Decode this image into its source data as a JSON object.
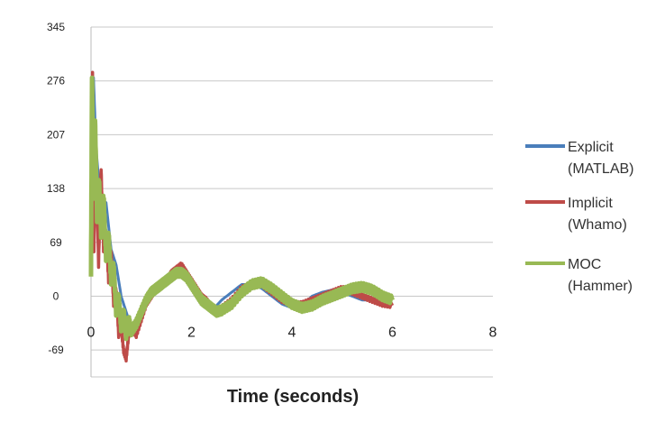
{
  "chart_data": {
    "type": "line",
    "title": "",
    "xlabel": "Time (seconds)",
    "ylabel": "",
    "xlim": [
      0,
      8
    ],
    "ylim": [
      -103.5,
      345
    ],
    "x_ticks": [
      "0",
      "2",
      "4",
      "6",
      "8"
    ],
    "y_ticks": [
      "345",
      "276",
      "207",
      "138",
      "69",
      "0",
      "-69"
    ],
    "grid": "horizontal",
    "legend_position": "right",
    "series": [
      {
        "name": "Explicit (MATLAB)",
        "name_lines": [
          "Explicit",
          "(MATLAB)"
        ],
        "color": "#4a7ebb",
        "x": [
          0,
          0.05,
          0.1,
          0.2,
          0.3,
          0.4,
          0.5,
          0.6,
          0.7,
          0.8,
          0.9,
          1.0,
          1.1,
          1.2,
          1.3,
          1.4,
          1.5,
          1.6,
          1.7,
          1.8,
          1.9,
          2.0,
          2.1,
          2.2,
          2.3,
          2.4,
          2.5,
          2.6,
          2.8,
          3.0,
          3.2,
          3.4,
          3.6,
          3.8,
          4.0,
          4.2,
          4.4,
          4.6,
          4.8,
          5.0,
          5.2,
          5.4,
          5.6,
          5.8,
          6.0
        ],
        "y": [
          60,
          280,
          190,
          110,
          120,
          60,
          40,
          0,
          -20,
          -40,
          -35,
          -20,
          -5,
          5,
          10,
          15,
          20,
          20,
          25,
          30,
          25,
          15,
          5,
          -5,
          -10,
          -15,
          -12,
          -5,
          5,
          15,
          15,
          10,
          0,
          -10,
          -15,
          -12,
          0,
          5,
          8,
          5,
          0,
          -5,
          -5,
          0,
          0
        ]
      },
      {
        "name": "Implicit (Whamo)",
        "name_lines": [
          "Implicit",
          "(Whamo)"
        ],
        "color": "#be4b48",
        "x": [
          0,
          0.03,
          0.06,
          0.1,
          0.15,
          0.2,
          0.25,
          0.3,
          0.35,
          0.4,
          0.45,
          0.5,
          0.55,
          0.6,
          0.65,
          0.7,
          0.75,
          0.8,
          0.9,
          1.0,
          1.1,
          1.2,
          1.3,
          1.4,
          1.5,
          1.6,
          1.7,
          1.8,
          1.9,
          2.0,
          2.1,
          2.2,
          2.3,
          2.4,
          2.5,
          2.6,
          2.8,
          3.0,
          3.2,
          3.4,
          3.6,
          3.8,
          4.0,
          4.2,
          4.4,
          4.6,
          4.8,
          5.0,
          5.2,
          5.4,
          5.6,
          5.8,
          6.0
        ],
        "y": [
          40,
          290,
          60,
          190,
          40,
          165,
          60,
          80,
          20,
          60,
          -10,
          10,
          -50,
          -40,
          -70,
          -80,
          -50,
          -40,
          -50,
          -30,
          -10,
          0,
          10,
          15,
          20,
          30,
          35,
          40,
          30,
          20,
          10,
          0,
          -5,
          -15,
          -20,
          -15,
          -5,
          10,
          15,
          15,
          5,
          -5,
          -10,
          -10,
          -5,
          0,
          5,
          10,
          5,
          0,
          -5,
          -10,
          -12
        ]
      },
      {
        "name": "MOC (Hammer)",
        "name_lines": [
          "MOC",
          "(Hammer)"
        ],
        "color": "#98b954",
        "x": [
          0,
          0.02,
          0.05,
          0.08,
          0.12,
          0.16,
          0.2,
          0.25,
          0.3,
          0.35,
          0.4,
          0.45,
          0.5,
          0.55,
          0.6,
          0.65,
          0.7,
          0.75,
          0.8,
          0.9,
          1.0,
          1.1,
          1.2,
          1.3,
          1.4,
          1.5,
          1.6,
          1.7,
          1.8,
          1.9,
          2.0,
          2.1,
          2.2,
          2.3,
          2.4,
          2.5,
          2.6,
          2.8,
          3.0,
          3.2,
          3.4,
          3.6,
          3.8,
          4.0,
          4.2,
          4.4,
          4.6,
          4.8,
          5.0,
          5.2,
          5.4,
          5.6,
          5.8,
          6.0
        ],
        "y": [
          30,
          285,
          130,
          230,
          100,
          150,
          80,
          130,
          50,
          80,
          20,
          40,
          -20,
          0,
          -40,
          -20,
          -50,
          -30,
          -45,
          -35,
          -20,
          -5,
          5,
          10,
          15,
          20,
          25,
          30,
          30,
          25,
          15,
          5,
          -5,
          -10,
          -15,
          -20,
          -18,
          -10,
          5,
          15,
          18,
          10,
          0,
          -10,
          -15,
          -12,
          -5,
          0,
          5,
          10,
          12,
          8,
          0,
          -5
        ]
      }
    ]
  }
}
